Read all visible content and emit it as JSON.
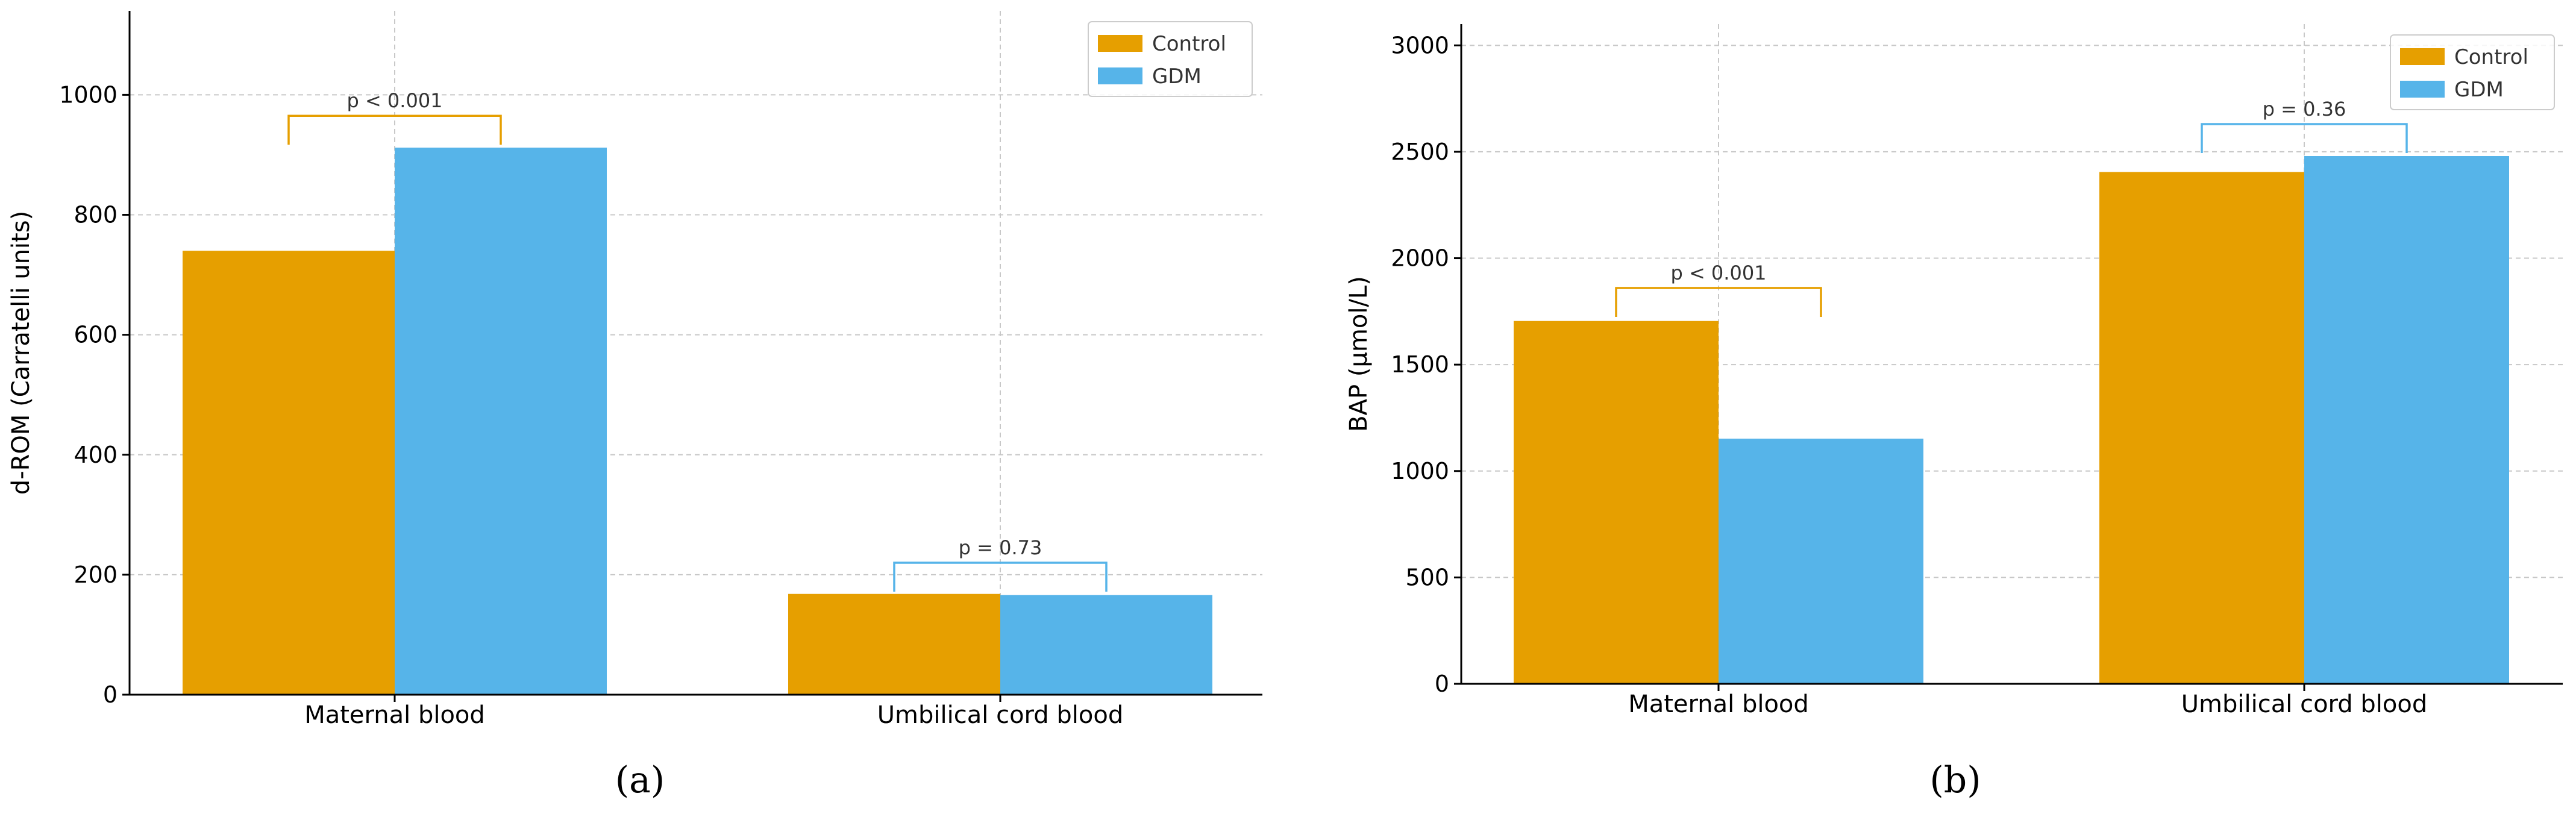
{
  "colors": {
    "control": "#E69F00",
    "gdm": "#56B4E9",
    "axis": "#000000",
    "grid": "#c8c8c8",
    "text": "#333333"
  },
  "chart_data": [
    {
      "type": "bar",
      "panel_label": "(a)",
      "title": "",
      "xlabel": "",
      "ylabel": "d-ROM (Carratelli units)",
      "categories": [
        "Maternal blood",
        "Umbilical cord blood"
      ],
      "series": [
        {
          "name": "Control",
          "values": [
            740,
            168
          ]
        },
        {
          "name": "GDM",
          "values": [
            912,
            166
          ]
        }
      ],
      "ylim": [
        0,
        1140
      ],
      "yticks": [
        0,
        200,
        400,
        600,
        800,
        1000
      ],
      "ytick_labels": [
        "0",
        "200",
        "400",
        "600",
        "800",
        "1000"
      ],
      "grid": true,
      "legend": {
        "position": "top-right",
        "labels": [
          "Control",
          "GDM"
        ]
      },
      "annotations": [
        {
          "text": "p < 0.001",
          "category_index": 0,
          "bracket_y": 965,
          "color_series": "Control"
        },
        {
          "text": "p = 0.73",
          "category_index": 1,
          "bracket_y": 220,
          "color_series": "GDM"
        }
      ]
    },
    {
      "type": "bar",
      "panel_label": "(b)",
      "title": "",
      "xlabel": "",
      "ylabel": "BAP (µmol/L)",
      "categories": [
        "Maternal blood",
        "Umbilical cord blood"
      ],
      "series": [
        {
          "name": "Control",
          "values": [
            1705,
            2405
          ]
        },
        {
          "name": "GDM",
          "values": [
            1152,
            2480
          ]
        }
      ],
      "ylim": [
        0,
        3100
      ],
      "yticks": [
        0,
        500,
        1000,
        1500,
        2000,
        2500,
        3000
      ],
      "ytick_labels": [
        "0",
        "500",
        "1000",
        "1500",
        "2000",
        "2500",
        "3000"
      ],
      "grid": true,
      "legend": {
        "position": "top-right",
        "labels": [
          "Control",
          "GDM"
        ]
      },
      "annotations": [
        {
          "text": "p < 0.001",
          "category_index": 0,
          "bracket_y": 1860,
          "color_series": "Control"
        },
        {
          "text": "p = 0.36",
          "category_index": 1,
          "bracket_y": 2630,
          "color_series": "GDM"
        }
      ]
    }
  ]
}
